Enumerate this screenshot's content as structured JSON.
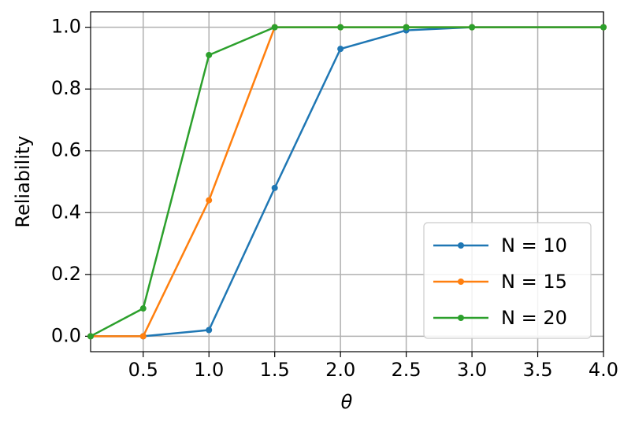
{
  "chart_data": {
    "type": "line",
    "xlabel": "θ",
    "ylabel": "Reliability",
    "x": [
      0.1,
      0.5,
      1.0,
      1.5,
      2.0,
      2.5,
      3.0,
      4.0
    ],
    "series": [
      {
        "name": "N = 10",
        "color": "#1f77b4",
        "values": [
          0,
          0,
          0.02,
          0.48,
          0.93,
          0.99,
          1.0,
          1.0
        ]
      },
      {
        "name": "N = 15",
        "color": "#ff7f0e",
        "values": [
          0,
          0,
          0.44,
          1.0,
          1.0,
          1.0,
          1.0,
          1.0
        ]
      },
      {
        "name": "N = 20",
        "color": "#2ca02c",
        "values": [
          0,
          0.09,
          0.91,
          1.0,
          1.0,
          1.0,
          1.0,
          1.0
        ]
      }
    ],
    "xlim": [
      0.1,
      4.0
    ],
    "ylim": [
      -0.05,
      1.05
    ],
    "xticks": [
      0.5,
      {
        "value": 1,
        "label": "1.0"
      },
      1.5,
      {
        "value": 2,
        "label": "2.0"
      },
      2.5,
      {
        "value": 3,
        "label": "3.0"
      },
      3.5,
      {
        "value": 4,
        "label": "4.0"
      }
    ],
    "yticks": [
      {
        "value": 0,
        "label": "0.0"
      },
      0.2,
      0.4,
      0.6,
      0.8,
      {
        "value": 1,
        "label": "1.0"
      }
    ],
    "grid": true,
    "legend": "lower right"
  }
}
